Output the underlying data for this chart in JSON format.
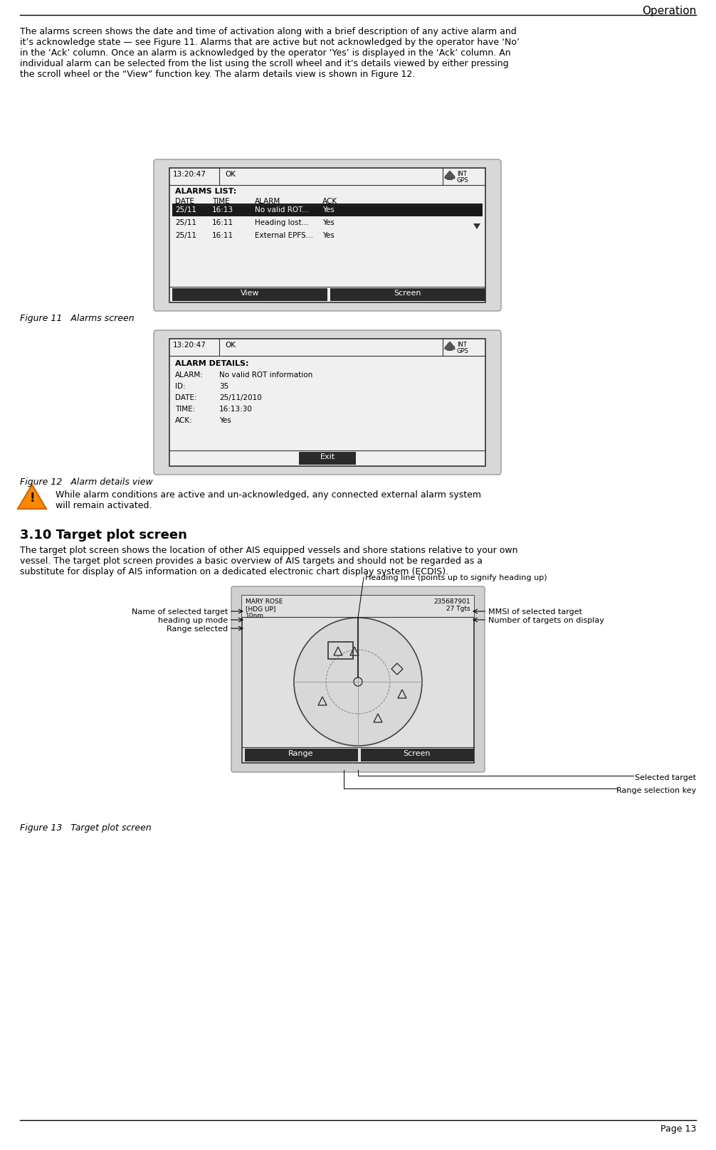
{
  "page_title": "Operation",
  "page_number": "Page 13",
  "section_heading": "3.10 Target plot screen",
  "body_text_1": "The alarms screen shows the date and time of activation along with a brief description of any active alarm and\nit’s acknowledge state — see Figure 11. Alarms that are active but not acknowledged by the operator have ‘No’\nin the ‘Ack’ column. Once an alarm is acknowledged by the operator ‘Yes’ is displayed in the ‘Ack’ column. An\nindividual alarm can be selected from the list using the scroll wheel and it’s details viewed by either pressing\nthe scroll wheel or the “View” function key. The alarm details view is shown in Figure 12.",
  "figure11_caption": "Figure 11   Alarms screen",
  "figure12_caption": "Figure 12   Alarm details view",
  "warning_text": "While alarm conditions are active and un-acknowledged, any connected external alarm system\nwill remain activated.",
  "section_body": "The target plot screen shows the location of other AIS equipped vessels and shore stations relative to your own\nvessel. The target plot screen provides a basic overview of AIS targets and should not be regarded as a\nsubstitute for display of AIS information on a dedicated electronic chart display system (ECDIS).",
  "figure13_caption": "Figure 13   Target plot screen",
  "alarm_screen": {
    "time": "13:20:47",
    "status": "OK",
    "icon_line1": "INT",
    "icon_line2": "GPS",
    "header": "ALARMS LIST:",
    "columns": [
      "DATE",
      "TIME",
      "ALARM",
      "ACK"
    ],
    "rows": [
      [
        "25/11",
        "16:13",
        "No valid ROT...",
        "Yes"
      ],
      [
        "25/11",
        "16:11",
        "Heading lost...",
        "Yes"
      ],
      [
        "25/11",
        "16:11",
        "External EPFS...",
        "Yes"
      ]
    ],
    "selected_row": 0,
    "buttons": [
      "View",
      "Screen"
    ]
  },
  "alarm_details": {
    "time": "13:20:47",
    "status": "OK",
    "icon_line1": "INT",
    "icon_line2": "GPS",
    "header": "ALARM DETAILS:",
    "fields": [
      [
        "ALARM:",
        "No valid ROT information"
      ],
      [
        "ID:",
        "35"
      ],
      [
        "DATE:",
        "25/11/2010"
      ],
      [
        "TIME:",
        "16:13:30"
      ],
      [
        "ACK:",
        "Yes"
      ]
    ],
    "buttons": [
      "Exit"
    ]
  },
  "target_plot": {
    "mode": "[HDG UP]",
    "range": "10nm",
    "vessel_name": "MARY ROSE",
    "mmsi": "235687901",
    "num_targets": "27 Tgts",
    "buttons": [
      "Range",
      "Screen"
    ]
  },
  "annotations_left": [
    "Name of selected target",
    "heading up mode",
    "Range selected"
  ],
  "annotations_right": [
    "Heading line (points up to signify heading up)",
    "MMSI of selected target",
    "Number of targets on display"
  ],
  "annotations_bottom": [
    "Selected target",
    "Range selection key"
  ],
  "bg_color": "#ffffff",
  "selected_row_bg": "#1a1a1a",
  "selected_row_fg": "#ffffff",
  "button_bg": "#2a2a2a",
  "button_fg": "#ffffff",
  "text_color": "#000000"
}
